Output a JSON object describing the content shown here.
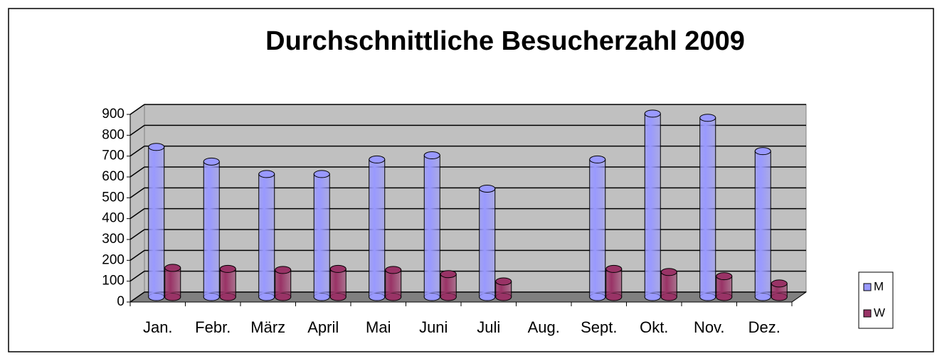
{
  "chart_data": {
    "type": "bar3d",
    "title": "Durchschnittliche Besucherzahl 2009",
    "categories": [
      "Jan.",
      "Febr.",
      "März",
      "April",
      "Mai",
      "Juni",
      "Juli",
      "Aug.",
      "Sept.",
      "Okt.",
      "Nov.",
      "Dez."
    ],
    "series": [
      {
        "name": "M",
        "color": "#9999ff",
        "values": [
          720,
          650,
          590,
          590,
          660,
          680,
          520,
          null,
          660,
          880,
          860,
          700
        ]
      },
      {
        "name": "W",
        "color": "#993366",
        "values": [
          140,
          135,
          130,
          135,
          130,
          110,
          75,
          null,
          135,
          120,
          100,
          65
        ]
      }
    ],
    "ylim": [
      0,
      900
    ],
    "yticks": [
      0,
      100,
      200,
      300,
      400,
      500,
      600,
      700,
      800,
      900
    ],
    "grid": true,
    "legend": "right"
  }
}
